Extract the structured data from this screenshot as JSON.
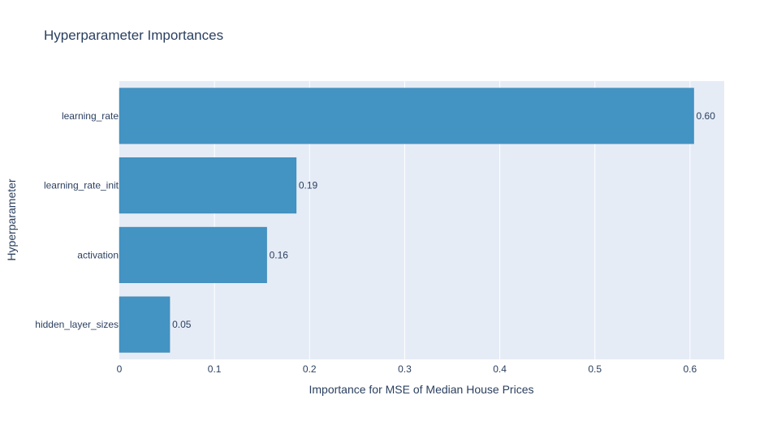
{
  "chart_data": {
    "type": "bar",
    "orientation": "horizontal",
    "title": "Hyperparameter Importances",
    "xlabel": "Importance for MSE of Median House Prices",
    "ylabel": "Hyperparameter",
    "categories": [
      "learning_rate",
      "learning_rate_init",
      "activation",
      "hidden_layer_sizes"
    ],
    "values": [
      0.604,
      0.186,
      0.155,
      0.053
    ],
    "value_labels": [
      "0.60",
      "0.19",
      "0.16",
      "0.05"
    ],
    "xlim": [
      0,
      0.636
    ],
    "xticks": [
      0,
      0.1,
      0.2,
      0.3,
      0.4,
      0.5,
      0.6
    ],
    "xtick_labels": [
      "0",
      "0.1",
      "0.2",
      "0.3",
      "0.4",
      "0.5",
      "0.6"
    ],
    "grid": true,
    "legend": "none",
    "colors": {
      "bar": "#4393c3",
      "bar_edge": "#3b83b0",
      "plot_bg": "#e5ecf6",
      "grid": "#ffffff",
      "text": "#2a3f5f"
    }
  }
}
